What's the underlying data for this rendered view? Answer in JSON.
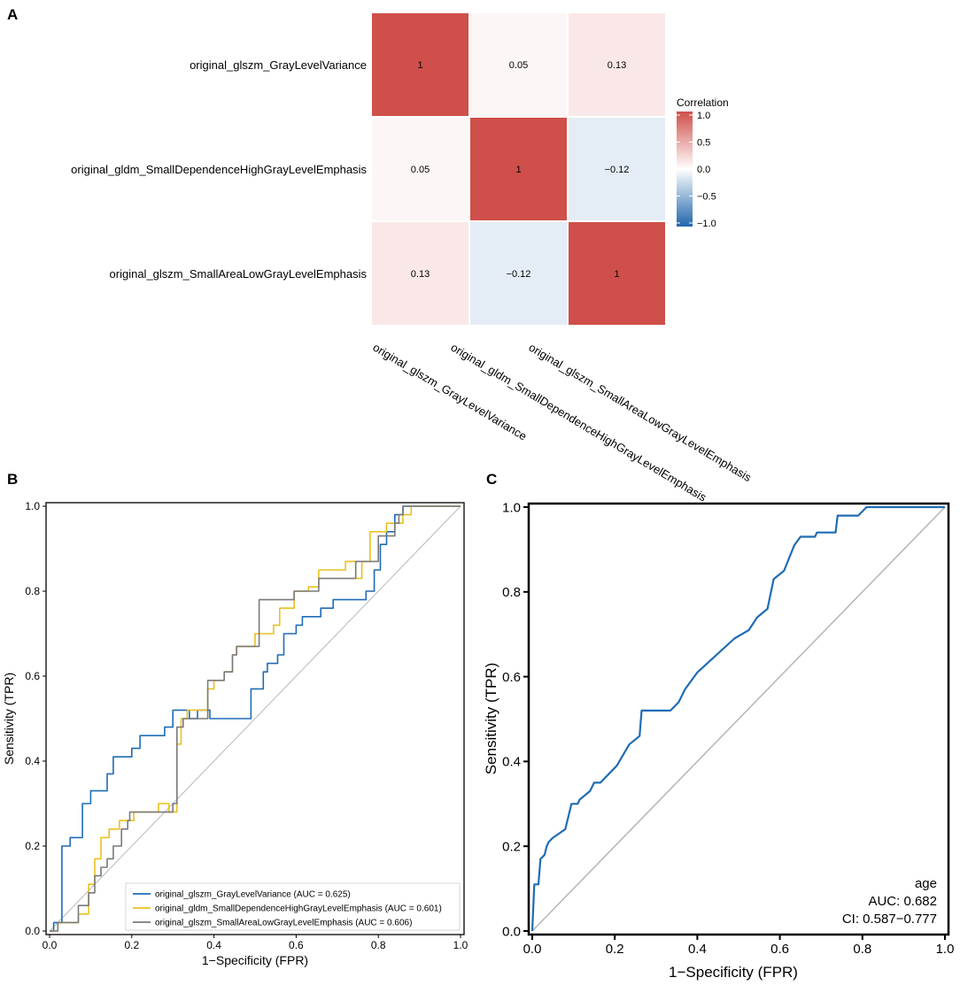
{
  "panels": {
    "a": "A",
    "b": "B",
    "c": "C"
  },
  "chart_data": [
    {
      "type": "heatmap",
      "panel": "A",
      "rows": [
        "original_glszm_GrayLevelVariance",
        "original_gldm_SmallDependenceHighGrayLevelEmphasis",
        "original_glszm_SmallAreaLowGrayLevelEmphasis"
      ],
      "columns": [
        "original_glszm_GrayLevelVariance",
        "original_gldm_SmallDependenceHighGrayLevelEmphasis",
        "original_glszm_SmallAreaLowGrayLevelEmphasis"
      ],
      "values": [
        [
          1,
          0.05,
          0.13
        ],
        [
          0.05,
          1,
          -0.12
        ],
        [
          0.13,
          -0.12,
          1
        ]
      ],
      "value_labels": [
        [
          "1",
          "0.05",
          "0.13"
        ],
        [
          "0.05",
          "1",
          "−0.12"
        ],
        [
          "0.13",
          "−0.12",
          "1"
        ]
      ],
      "colorbar": {
        "title": "Correlation",
        "range": [
          -1,
          1
        ],
        "ticks": [
          1.0,
          0.5,
          0.0,
          -0.5,
          -1.0
        ],
        "tick_labels": [
          "1.0",
          "0.5",
          "0.0",
          "−0.5",
          "−1.0"
        ],
        "colors": {
          "low": "#2166ac",
          "mid": "#ffffff",
          "high": "#cf4f4a"
        }
      }
    },
    {
      "type": "line",
      "panel": "B",
      "xlabel": "1−Specificity (FPR)",
      "ylabel": "Sensitivity (TPR)",
      "xlim": [
        0,
        1
      ],
      "ylim": [
        0,
        1
      ],
      "xticks": [
        0.0,
        0.2,
        0.4,
        0.6,
        0.8,
        1.0
      ],
      "xtick_labels": [
        "0.0",
        "0.2",
        "0.4",
        "0.6",
        "0.8",
        "1.0"
      ],
      "yticks": [
        0.0,
        0.2,
        0.4,
        0.6,
        0.8,
        1.0
      ],
      "ytick_labels": [
        "0.0",
        "0.2",
        "0.4",
        "0.6",
        "0.8",
        "1.0"
      ],
      "legend_position": "bottom-right",
      "diagonal_color": "#b8b8b8",
      "series": [
        {
          "name": "original_glszm_GrayLevelVariance (AUC = 0.625)",
          "color": "#1f6cb5",
          "points": [
            [
              0,
              0
            ],
            [
              0.01,
              0
            ],
            [
              0.01,
              0.02
            ],
            [
              0.03,
              0.02
            ],
            [
              0.03,
              0.2
            ],
            [
              0.05,
              0.2
            ],
            [
              0.05,
              0.22
            ],
            [
              0.08,
              0.22
            ],
            [
              0.08,
              0.3
            ],
            [
              0.1,
              0.3
            ],
            [
              0.1,
              0.33
            ],
            [
              0.14,
              0.33
            ],
            [
              0.14,
              0.37
            ],
            [
              0.155,
              0.37
            ],
            [
              0.155,
              0.41
            ],
            [
              0.2,
              0.41
            ],
            [
              0.2,
              0.43
            ],
            [
              0.22,
              0.43
            ],
            [
              0.22,
              0.46
            ],
            [
              0.28,
              0.46
            ],
            [
              0.28,
              0.48
            ],
            [
              0.3,
              0.48
            ],
            [
              0.3,
              0.52
            ],
            [
              0.34,
              0.52
            ],
            [
              0.34,
              0.5
            ],
            [
              0.36,
              0.5
            ],
            [
              0.36,
              0.52
            ],
            [
              0.39,
              0.52
            ],
            [
              0.39,
              0.5
            ],
            [
              0.49,
              0.5
            ],
            [
              0.49,
              0.57
            ],
            [
              0.52,
              0.57
            ],
            [
              0.52,
              0.61
            ],
            [
              0.53,
              0.61
            ],
            [
              0.53,
              0.63
            ],
            [
              0.555,
              0.63
            ],
            [
              0.555,
              0.65
            ],
            [
              0.57,
              0.65
            ],
            [
              0.57,
              0.7
            ],
            [
              0.6,
              0.7
            ],
            [
              0.6,
              0.72
            ],
            [
              0.615,
              0.72
            ],
            [
              0.615,
              0.74
            ],
            [
              0.66,
              0.74
            ],
            [
              0.66,
              0.76
            ],
            [
              0.69,
              0.76
            ],
            [
              0.69,
              0.78
            ],
            [
              0.77,
              0.78
            ],
            [
              0.77,
              0.8
            ],
            [
              0.79,
              0.8
            ],
            [
              0.79,
              0.85
            ],
            [
              0.805,
              0.85
            ],
            [
              0.805,
              0.91
            ],
            [
              0.82,
              0.91
            ],
            [
              0.82,
              0.94
            ],
            [
              0.84,
              0.94
            ],
            [
              0.84,
              0.98
            ],
            [
              0.86,
              0.98
            ],
            [
              0.86,
              1
            ],
            [
              1,
              1
            ]
          ]
        },
        {
          "name": "original_gldm_SmallDependenceHighGrayLevelEmphasis (AUC = 0.601)",
          "color": "#eac01e",
          "points": [
            [
              0,
              0
            ],
            [
              0.02,
              0
            ],
            [
              0.02,
              0.02
            ],
            [
              0.07,
              0.02
            ],
            [
              0.07,
              0.04
            ],
            [
              0.095,
              0.04
            ],
            [
              0.095,
              0.11
            ],
            [
              0.11,
              0.11
            ],
            [
              0.11,
              0.17
            ],
            [
              0.125,
              0.17
            ],
            [
              0.125,
              0.22
            ],
            [
              0.145,
              0.22
            ],
            [
              0.145,
              0.24
            ],
            [
              0.17,
              0.24
            ],
            [
              0.17,
              0.26
            ],
            [
              0.205,
              0.26
            ],
            [
              0.205,
              0.28
            ],
            [
              0.265,
              0.28
            ],
            [
              0.265,
              0.3
            ],
            [
              0.29,
              0.3
            ],
            [
              0.29,
              0.28
            ],
            [
              0.31,
              0.28
            ],
            [
              0.31,
              0.44
            ],
            [
              0.32,
              0.44
            ],
            [
              0.32,
              0.5
            ],
            [
              0.335,
              0.5
            ],
            [
              0.335,
              0.52
            ],
            [
              0.385,
              0.52
            ],
            [
              0.385,
              0.57
            ],
            [
              0.4,
              0.57
            ],
            [
              0.4,
              0.59
            ],
            [
              0.425,
              0.59
            ],
            [
              0.425,
              0.61
            ],
            [
              0.445,
              0.61
            ],
            [
              0.445,
              0.65
            ],
            [
              0.455,
              0.65
            ],
            [
              0.455,
              0.67
            ],
            [
              0.5,
              0.67
            ],
            [
              0.5,
              0.7
            ],
            [
              0.545,
              0.7
            ],
            [
              0.545,
              0.72
            ],
            [
              0.56,
              0.72
            ],
            [
              0.56,
              0.76
            ],
            [
              0.595,
              0.76
            ],
            [
              0.595,
              0.8
            ],
            [
              0.63,
              0.8
            ],
            [
              0.63,
              0.81
            ],
            [
              0.655,
              0.81
            ],
            [
              0.655,
              0.85
            ],
            [
              0.72,
              0.85
            ],
            [
              0.72,
              0.87
            ],
            [
              0.745,
              0.87
            ],
            [
              0.745,
              0.83
            ],
            [
              0.76,
              0.83
            ],
            [
              0.76,
              0.87
            ],
            [
              0.78,
              0.87
            ],
            [
              0.78,
              0.94
            ],
            [
              0.82,
              0.94
            ],
            [
              0.82,
              0.96
            ],
            [
              0.86,
              0.96
            ],
            [
              0.86,
              0.98
            ],
            [
              0.88,
              0.98
            ],
            [
              0.88,
              1
            ],
            [
              1,
              1
            ]
          ]
        },
        {
          "name": "original_glszm_SmallAreaLowGrayLevelEmphasis (AUC = 0.606)",
          "color": "#7a7a7a",
          "points": [
            [
              0,
              0
            ],
            [
              0.02,
              0
            ],
            [
              0.02,
              0.02
            ],
            [
              0.07,
              0.02
            ],
            [
              0.07,
              0.06
            ],
            [
              0.095,
              0.06
            ],
            [
              0.095,
              0.09
            ],
            [
              0.11,
              0.09
            ],
            [
              0.11,
              0.13
            ],
            [
              0.125,
              0.13
            ],
            [
              0.125,
              0.15
            ],
            [
              0.14,
              0.15
            ],
            [
              0.14,
              0.17
            ],
            [
              0.155,
              0.17
            ],
            [
              0.155,
              0.2
            ],
            [
              0.175,
              0.2
            ],
            [
              0.175,
              0.24
            ],
            [
              0.19,
              0.24
            ],
            [
              0.19,
              0.26
            ],
            [
              0.195,
              0.26
            ],
            [
              0.195,
              0.28
            ],
            [
              0.3,
              0.28
            ],
            [
              0.3,
              0.3
            ],
            [
              0.31,
              0.3
            ],
            [
              0.31,
              0.48
            ],
            [
              0.325,
              0.48
            ],
            [
              0.325,
              0.5
            ],
            [
              0.385,
              0.5
            ],
            [
              0.385,
              0.59
            ],
            [
              0.425,
              0.59
            ],
            [
              0.425,
              0.61
            ],
            [
              0.445,
              0.61
            ],
            [
              0.445,
              0.65
            ],
            [
              0.455,
              0.65
            ],
            [
              0.455,
              0.67
            ],
            [
              0.51,
              0.67
            ],
            [
              0.51,
              0.78
            ],
            [
              0.595,
              0.78
            ],
            [
              0.595,
              0.8
            ],
            [
              0.655,
              0.8
            ],
            [
              0.655,
              0.83
            ],
            [
              0.745,
              0.83
            ],
            [
              0.745,
              0.87
            ],
            [
              0.8,
              0.87
            ],
            [
              0.8,
              0.93
            ],
            [
              0.84,
              0.93
            ],
            [
              0.84,
              0.96
            ],
            [
              0.85,
              0.96
            ],
            [
              0.85,
              0.98
            ],
            [
              0.86,
              0.98
            ],
            [
              0.86,
              1
            ],
            [
              1,
              1
            ]
          ]
        }
      ]
    },
    {
      "type": "line",
      "panel": "C",
      "xlabel": "1−Specificity (FPR)",
      "ylabel": "Sensitivity (TPR)",
      "xlim": [
        0,
        1
      ],
      "ylim": [
        0,
        1
      ],
      "xticks": [
        0.0,
        0.2,
        0.4,
        0.6,
        0.8,
        1.0
      ],
      "xtick_labels": [
        "0.0",
        "0.2",
        "0.4",
        "0.6",
        "0.8",
        "1.0"
      ],
      "yticks": [
        0.0,
        0.2,
        0.4,
        0.6,
        0.8,
        1.0
      ],
      "ytick_labels": [
        "0.0",
        "0.2",
        "0.4",
        "0.6",
        "0.8",
        "1.0"
      ],
      "diagonal_color": "#b8b8b8",
      "annotation": [
        "age",
        "AUC: 0.682",
        "CI: 0.587−0.777"
      ],
      "series": [
        {
          "name": "age",
          "color": "#1f6cb5",
          "points": [
            [
              0,
              0
            ],
            [
              0.005,
              0.11
            ],
            [
              0.015,
              0.11
            ],
            [
              0.02,
              0.17
            ],
            [
              0.03,
              0.18
            ],
            [
              0.035,
              0.2
            ],
            [
              0.04,
              0.21
            ],
            [
              0.05,
              0.22
            ],
            [
              0.08,
              0.24
            ],
            [
              0.095,
              0.3
            ],
            [
              0.11,
              0.3
            ],
            [
              0.115,
              0.31
            ],
            [
              0.14,
              0.33
            ],
            [
              0.15,
              0.35
            ],
            [
              0.165,
              0.35
            ],
            [
              0.205,
              0.39
            ],
            [
              0.235,
              0.44
            ],
            [
              0.26,
              0.46
            ],
            [
              0.265,
              0.52
            ],
            [
              0.335,
              0.52
            ],
            [
              0.355,
              0.54
            ],
            [
              0.37,
              0.57
            ],
            [
              0.4,
              0.61
            ],
            [
              0.445,
              0.65
            ],
            [
              0.49,
              0.69
            ],
            [
              0.525,
              0.71
            ],
            [
              0.545,
              0.74
            ],
            [
              0.57,
              0.76
            ],
            [
              0.585,
              0.83
            ],
            [
              0.61,
              0.85
            ],
            [
              0.635,
              0.91
            ],
            [
              0.65,
              0.93
            ],
            [
              0.685,
              0.93
            ],
            [
              0.69,
              0.94
            ],
            [
              0.735,
              0.94
            ],
            [
              0.74,
              0.98
            ],
            [
              0.79,
              0.98
            ],
            [
              0.81,
              1
            ],
            [
              1,
              1
            ]
          ]
        }
      ]
    }
  ]
}
